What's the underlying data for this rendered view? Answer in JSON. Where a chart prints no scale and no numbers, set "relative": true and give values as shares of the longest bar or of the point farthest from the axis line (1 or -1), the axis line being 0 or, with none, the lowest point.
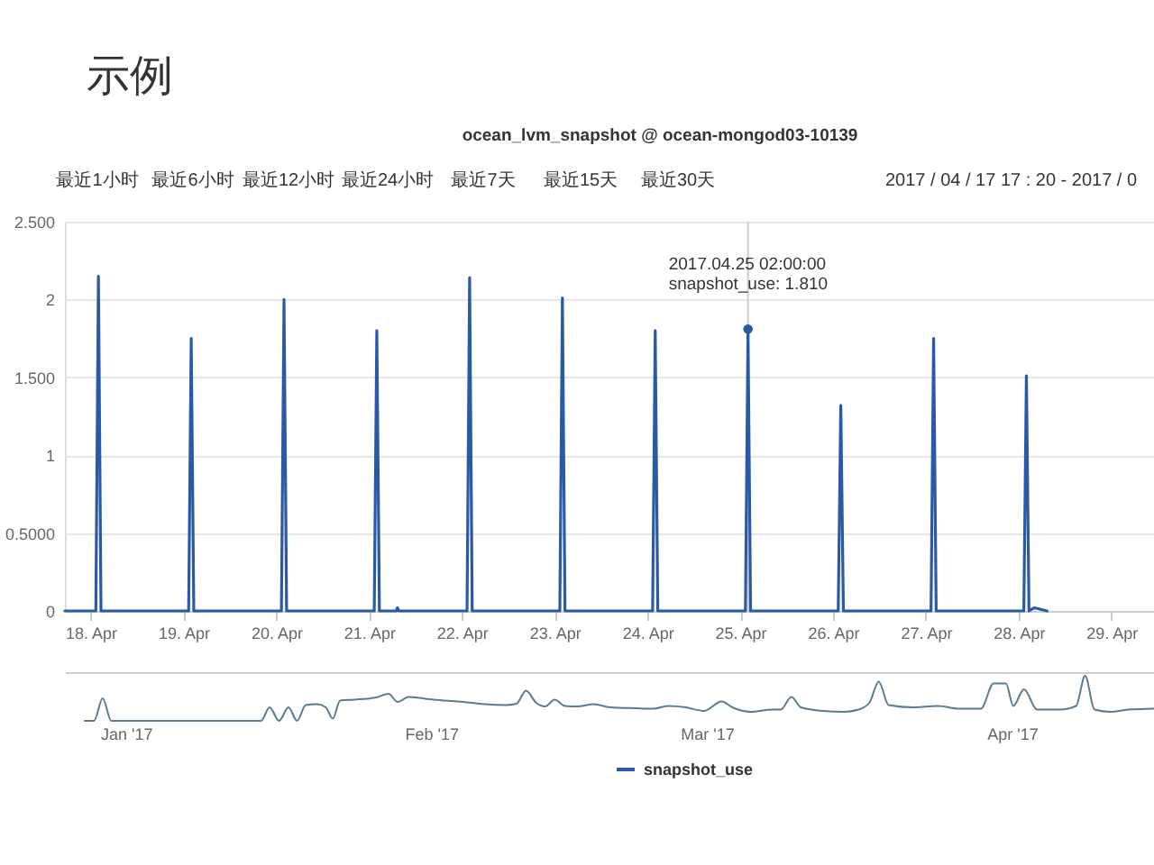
{
  "chart_data": [
    {
      "type": "line",
      "title": "示例",
      "subtitle": "ocean_lvm_snapshot @ ocean-mongod03-10139",
      "annotations": [
        "最近1小时",
        "最近6小时",
        "最近12小时",
        "最近24小时",
        "最近7天",
        "最近15天",
        "最近30天",
        "2017 / 04 / 17  17 : 20  -  2017 / 0",
        {
          "text": "2017.04.25 02:00:00\nsnapshot_use: 1.810",
          "x": "2017-04-25T02:00",
          "y": 1.81
        }
      ],
      "x": [
        "2017-04-17T17:20",
        "2017-04-18T01:20",
        "2017-04-18T02:00",
        "2017-04-18T02:40",
        "2017-04-19T01:20",
        "2017-04-19T02:00",
        "2017-04-19T02:40",
        "2017-04-20T01:20",
        "2017-04-20T02:00",
        "2017-04-20T02:40",
        "2017-04-21T01:20",
        "2017-04-21T02:00",
        "2017-04-21T02:40",
        "2017-04-21T07:00",
        "2017-04-21T07:20",
        "2017-04-21T07:40",
        "2017-04-22T01:20",
        "2017-04-22T02:00",
        "2017-04-22T02:40",
        "2017-04-23T01:20",
        "2017-04-23T02:00",
        "2017-04-23T02:40",
        "2017-04-24T01:20",
        "2017-04-24T02:00",
        "2017-04-24T02:40",
        "2017-04-25T01:20",
        "2017-04-25T02:00",
        "2017-04-25T02:40",
        "2017-04-26T01:20",
        "2017-04-26T02:00",
        "2017-04-26T02:40",
        "2017-04-27T01:20",
        "2017-04-27T02:00",
        "2017-04-27T02:40",
        "2017-04-28T01:20",
        "2017-04-28T02:00",
        "2017-04-28T02:40",
        "2017-04-28T04:00",
        "2017-04-28T07:20"
      ],
      "series": [
        {
          "name": "snapshot_use",
          "color": "#2a5aa7",
          "values": [
            0,
            0,
            2.15,
            0,
            0,
            1.75,
            0,
            0,
            2.0,
            0,
            0,
            1.8,
            0,
            0,
            0.02,
            0,
            0,
            2.14,
            0,
            0,
            2.01,
            0,
            0,
            1.8,
            0,
            0,
            1.81,
            0,
            0,
            1.32,
            0,
            0,
            1.75,
            0,
            0,
            1.51,
            0,
            0.02,
            0
          ]
        }
      ],
      "xlim": [
        "2017-04-17T17:20",
        "2017-04-29T11:00"
      ],
      "xticks": [
        {
          "value": "2017-04-18",
          "label": "18. Apr"
        },
        {
          "value": "2017-04-19",
          "label": "19. Apr"
        },
        {
          "value": "2017-04-20",
          "label": "20. Apr"
        },
        {
          "value": "2017-04-21",
          "label": "21. Apr"
        },
        {
          "value": "2017-04-22",
          "label": "22. Apr"
        },
        {
          "value": "2017-04-23",
          "label": "23. Apr"
        },
        {
          "value": "2017-04-24",
          "label": "24. Apr"
        },
        {
          "value": "2017-04-25",
          "label": "25. Apr"
        },
        {
          "value": "2017-04-26",
          "label": "26. Apr"
        },
        {
          "value": "2017-04-27",
          "label": "27. Apr"
        },
        {
          "value": "2017-04-28",
          "label": "28. Apr"
        },
        {
          "value": "2017-04-29",
          "label": "29. Apr"
        }
      ],
      "ylim": [
        0,
        2.5
      ],
      "yticks": [
        0,
        {
          "value": 0.5,
          "label": "0.5000"
        },
        1,
        {
          "value": 1.5,
          "label": "1.500"
        },
        2,
        {
          "value": 2.5,
          "label": "2.500"
        }
      ],
      "grid": "y",
      "legend": "bottom",
      "ref_lines": [
        {
          "axis": "x",
          "value": "2017-04-25T02:00",
          "color": "#cccccc"
        }
      ]
    },
    {
      "type": "line",
      "relative": true,
      "x": [
        "2016-12-27T19:00",
        "2016-12-28T18:00",
        "2016-12-29T15:00",
        "2016-12-30T12:00",
        "2017-01-14T17:00",
        "2017-01-15T14:00",
        "2017-01-16T13:00",
        "2017-01-17T12:00",
        "2017-01-18T09:00",
        "2017-01-19T06:00",
        "2017-01-20T10:00",
        "2017-01-21T07:00",
        "2017-01-22T00:00",
        "2017-01-22T18:00",
        "2017-01-24T05:00",
        "2017-01-26T10:00",
        "2017-01-27T16:00",
        "2017-01-28T14:00",
        "2017-01-29T17:00",
        "2017-02-01T06:00",
        "2017-02-04T05:00",
        "2017-02-06T09:00",
        "2017-02-08T14:00",
        "2017-02-09T16:00",
        "2017-02-10T15:00",
        "2017-02-11T16:00",
        "2017-02-12T14:00",
        "2017-02-13T13:00",
        "2017-02-14T14:00",
        "2017-02-15T21:00",
        "2017-02-17T12:00",
        "2017-02-19T04:00",
        "2017-02-21T18:00",
        "2017-02-23T14:00",
        "2017-02-25T01:00",
        "2017-02-26T21:00",
        "2017-02-28T17:00",
        "2017-03-02T12:00",
        "2017-03-03T14:00",
        "2017-03-05T11:00",
        "2017-03-07T15:00",
        "2017-03-08T12:00",
        "2017-03-09T14:00",
        "2017-03-10T13:00",
        "2017-03-12T18:00",
        "2017-03-14T23:00",
        "2017-03-16T10:00",
        "2017-03-17T12:00",
        "2017-03-18T11:00",
        "2017-03-19T11:00",
        "2017-03-21T21:00",
        "2017-03-24T11:00",
        "2017-03-26T15:00",
        "2017-03-28T20:00",
        "2017-03-30T03:00",
        "2017-03-31T09:00",
        "2017-04-01T03:00",
        "2017-04-02T05:00",
        "2017-04-03T13:00",
        "2017-04-05T21:00",
        "2017-04-07T12:00",
        "2017-04-08T10:00",
        "2017-04-09T09:00",
        "2017-04-11T00:00",
        "2017-04-12T19:00",
        "2017-04-15T10:00"
      ],
      "series": [
        {
          "color": "#5b7b8e",
          "values": [
            0,
            0,
            0.5,
            0,
            0,
            0.3,
            0,
            0.3,
            0,
            0.35,
            0.37,
            0.3,
            0.05,
            0.45,
            0.47,
            0.52,
            0.6,
            0.42,
            0.53,
            0.47,
            0.42,
            0.37,
            0.35,
            0.38,
            0.67,
            0.4,
            0.32,
            0.47,
            0.33,
            0.32,
            0.37,
            0.3,
            0.28,
            0.27,
            0.33,
            0.3,
            0.22,
            0.43,
            0.3,
            0.2,
            0.25,
            0.25,
            0.53,
            0.3,
            0.22,
            0.2,
            0.25,
            0.4,
            0.87,
            0.35,
            0.3,
            0.33,
            0.27,
            0.27,
            0.83,
            0.83,
            0.33,
            0.7,
            0.25,
            0.25,
            0.33,
            1,
            0.25,
            0.2,
            0.25,
            0.27
          ]
        }
      ],
      "xlim": [
        "2016-12-25T19:00",
        "2017-04-15T10:00"
      ],
      "xticks": [
        {
          "value": "2017-01-01",
          "label": "Jan '17"
        },
        {
          "value": "2017-02-01",
          "label": "Feb '17"
        },
        {
          "value": "2017-03-01",
          "label": "Mar '17"
        },
        {
          "value": "2017-04-01",
          "label": "Apr '17"
        }
      ]
    }
  ]
}
